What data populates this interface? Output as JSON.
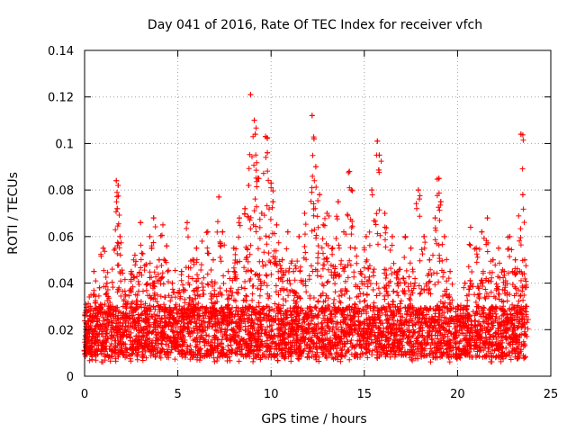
{
  "chart_data": {
    "type": "scatter",
    "title": "Day 041 of 2016, Rate Of TEC Index for receiver vfch",
    "xlabel": "GPS time / hours",
    "ylabel": "ROTI / TECUs",
    "xlim": [
      0,
      25
    ],
    "ylim": [
      0,
      0.14
    ],
    "xticks": [
      0,
      5,
      10,
      15,
      20,
      25
    ],
    "xtick_labels": [
      "0",
      "5",
      "10",
      "15",
      "20",
      "25"
    ],
    "yticks": [
      0,
      0.02,
      0.04,
      0.06,
      0.08,
      0.1,
      0.12,
      0.14
    ],
    "ytick_labels": [
      "0",
      "0.02",
      "0.04",
      "0.06",
      "0.08",
      "0.1",
      "0.12",
      "0.14"
    ],
    "grid": true,
    "marker": "+",
    "color": "#ff0000",
    "series": [
      {
        "name": "ROTI",
        "points": [
          [
            0.1,
            0.015
          ],
          [
            0.3,
            0.03
          ],
          [
            0.5,
            0.045
          ],
          [
            0.8,
            0.038
          ],
          [
            1.0,
            0.055
          ],
          [
            1.2,
            0.04
          ],
          [
            1.5,
            0.03
          ],
          [
            1.7,
            0.084
          ],
          [
            1.8,
            0.082
          ],
          [
            1.75,
            0.072
          ],
          [
            1.9,
            0.06
          ],
          [
            2.2,
            0.035
          ],
          [
            2.5,
            0.045
          ],
          [
            2.7,
            0.052
          ],
          [
            3.0,
            0.066
          ],
          [
            3.3,
            0.048
          ],
          [
            3.5,
            0.06
          ],
          [
            3.7,
            0.068
          ],
          [
            4.0,
            0.05
          ],
          [
            4.2,
            0.065
          ],
          [
            4.4,
            0.056
          ],
          [
            4.7,
            0.04
          ],
          [
            5.2,
            0.045
          ],
          [
            5.5,
            0.066
          ],
          [
            5.8,
            0.05
          ],
          [
            6.0,
            0.055
          ],
          [
            6.3,
            0.058
          ],
          [
            6.6,
            0.062
          ],
          [
            6.9,
            0.05
          ],
          [
            7.2,
            0.077
          ],
          [
            7.4,
            0.062
          ],
          [
            7.7,
            0.045
          ],
          [
            8.0,
            0.055
          ],
          [
            8.3,
            0.068
          ],
          [
            8.6,
            0.072
          ],
          [
            8.8,
            0.082
          ],
          [
            8.9,
            0.121
          ],
          [
            9.1,
            0.11
          ],
          [
            9.15,
            0.104
          ],
          [
            9.3,
            0.085
          ],
          [
            9.5,
            0.07
          ],
          [
            9.7,
            0.103
          ],
          [
            9.8,
            0.096
          ],
          [
            10.0,
            0.083
          ],
          [
            10.1,
            0.075
          ],
          [
            10.3,
            0.065
          ],
          [
            10.6,
            0.05
          ],
          [
            10.9,
            0.062
          ],
          [
            11.2,
            0.045
          ],
          [
            11.5,
            0.06
          ],
          [
            11.8,
            0.07
          ],
          [
            12.2,
            0.112
          ],
          [
            12.3,
            0.102
          ],
          [
            12.4,
            0.09
          ],
          [
            12.6,
            0.078
          ],
          [
            12.8,
            0.065
          ],
          [
            13.0,
            0.07
          ],
          [
            13.3,
            0.055
          ],
          [
            13.6,
            0.075
          ],
          [
            13.9,
            0.062
          ],
          [
            14.2,
            0.088
          ],
          [
            14.3,
            0.08
          ],
          [
            14.5,
            0.055
          ],
          [
            14.8,
            0.045
          ],
          [
            15.1,
            0.06
          ],
          [
            15.4,
            0.08
          ],
          [
            15.7,
            0.101
          ],
          [
            15.8,
            0.095
          ],
          [
            16.1,
            0.07
          ],
          [
            16.5,
            0.06
          ],
          [
            16.8,
            0.045
          ],
          [
            17.2,
            0.06
          ],
          [
            17.5,
            0.055
          ],
          [
            17.9,
            0.08
          ],
          [
            18.2,
            0.06
          ],
          [
            18.5,
            0.05
          ],
          [
            18.8,
            0.068
          ],
          [
            19.0,
            0.085
          ],
          [
            19.1,
            0.075
          ],
          [
            19.3,
            0.06
          ],
          [
            19.6,
            0.045
          ],
          [
            20.0,
            0.03
          ],
          [
            20.4,
            0.04
          ],
          [
            20.7,
            0.064
          ],
          [
            21.0,
            0.055
          ],
          [
            21.3,
            0.062
          ],
          [
            21.6,
            0.068
          ],
          [
            21.9,
            0.05
          ],
          [
            22.2,
            0.055
          ],
          [
            22.5,
            0.045
          ],
          [
            22.8,
            0.06
          ],
          [
            23.1,
            0.05
          ],
          [
            23.4,
            0.104
          ],
          [
            23.5,
            0.078
          ],
          [
            23.6,
            0.05
          ],
          [
            23.7,
            0.03
          ]
        ]
      }
    ],
    "dense_band": {
      "description_range_y": [
        0.005,
        0.045
      ],
      "typical_y": 0.017,
      "x_range": [
        0,
        23.7
      ]
    }
  }
}
